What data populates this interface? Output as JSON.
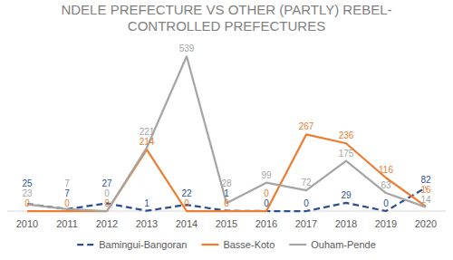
{
  "chart_data": {
    "type": "line",
    "title": "NDELE PREFECTURE VS OTHER (PARTLY) REBEL-CONTROLLED PREFECTURES",
    "categories": [
      "2010",
      "2011",
      "2012",
      "2013",
      "2014",
      "2015",
      "2016",
      "2017",
      "2018",
      "2019",
      "2020"
    ],
    "series": [
      {
        "name": "Bamingui-Bangoran",
        "color": "#2e4f8f",
        "line_style": "dashed",
        "values": [
          25,
          7,
          27,
          1,
          22,
          1,
          0,
          0,
          29,
          0,
          82
        ]
      },
      {
        "name": "Basse-Koto",
        "color": "#ed7d31",
        "line_style": "solid",
        "values": [
          0,
          0,
          0,
          214,
          0,
          0,
          0,
          267,
          236,
          116,
          16
        ]
      },
      {
        "name": "Ouham-Pende",
        "color": "#a5a5a5",
        "line_style": "solid",
        "values": [
          23,
          7,
          0,
          221,
          539,
          28,
          99,
          72,
          175,
          63,
          14
        ]
      }
    ],
    "ylim": [
      0,
      600
    ],
    "tick_labels": "x",
    "data_labels": true,
    "legend": "bottom",
    "grid": false
  }
}
